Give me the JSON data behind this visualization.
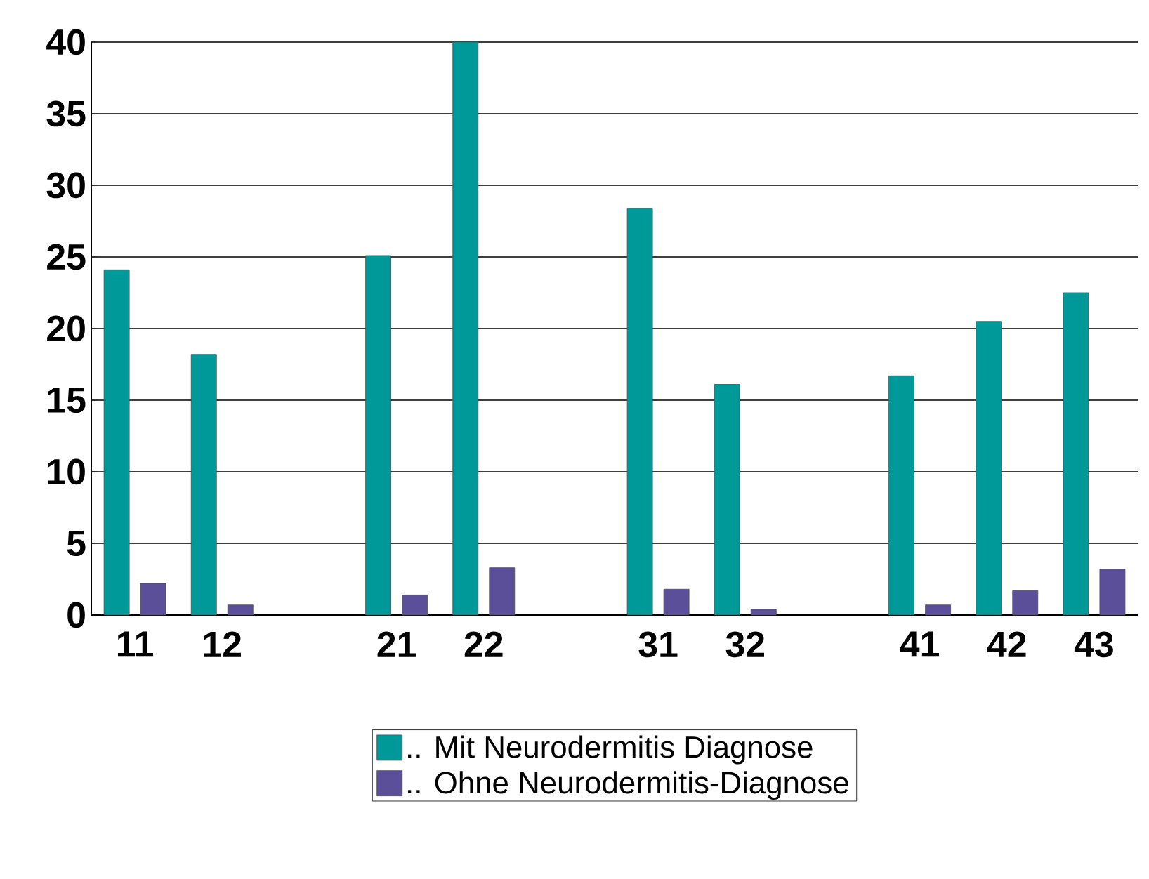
{
  "chart_data": {
    "type": "bar",
    "categories": [
      "11",
      "12",
      null,
      "21",
      "22",
      null,
      "31",
      "32",
      null,
      "41",
      "42",
      "43"
    ],
    "series": [
      {
        "name": ".. Mit Neurodermitis Diagnose",
        "color": "#009999",
        "values": [
          24.1,
          18.2,
          null,
          25.1,
          40,
          null,
          28.4,
          16.1,
          null,
          16.7,
          20.5,
          22.5
        ]
      },
      {
        "name": ".. Ohne Neurodermitis-Diagnose",
        "color": "#5c4f9a",
        "values": [
          2.2,
          0.7,
          null,
          1.4,
          3.3,
          null,
          1.8,
          0.4,
          null,
          0.7,
          1.7,
          3.2
        ]
      }
    ],
    "ylim": [
      0,
      40
    ],
    "yticks": [
      0,
      5,
      10,
      15,
      20,
      25,
      30,
      35,
      40
    ],
    "grid": "y",
    "legend": "bottom"
  }
}
